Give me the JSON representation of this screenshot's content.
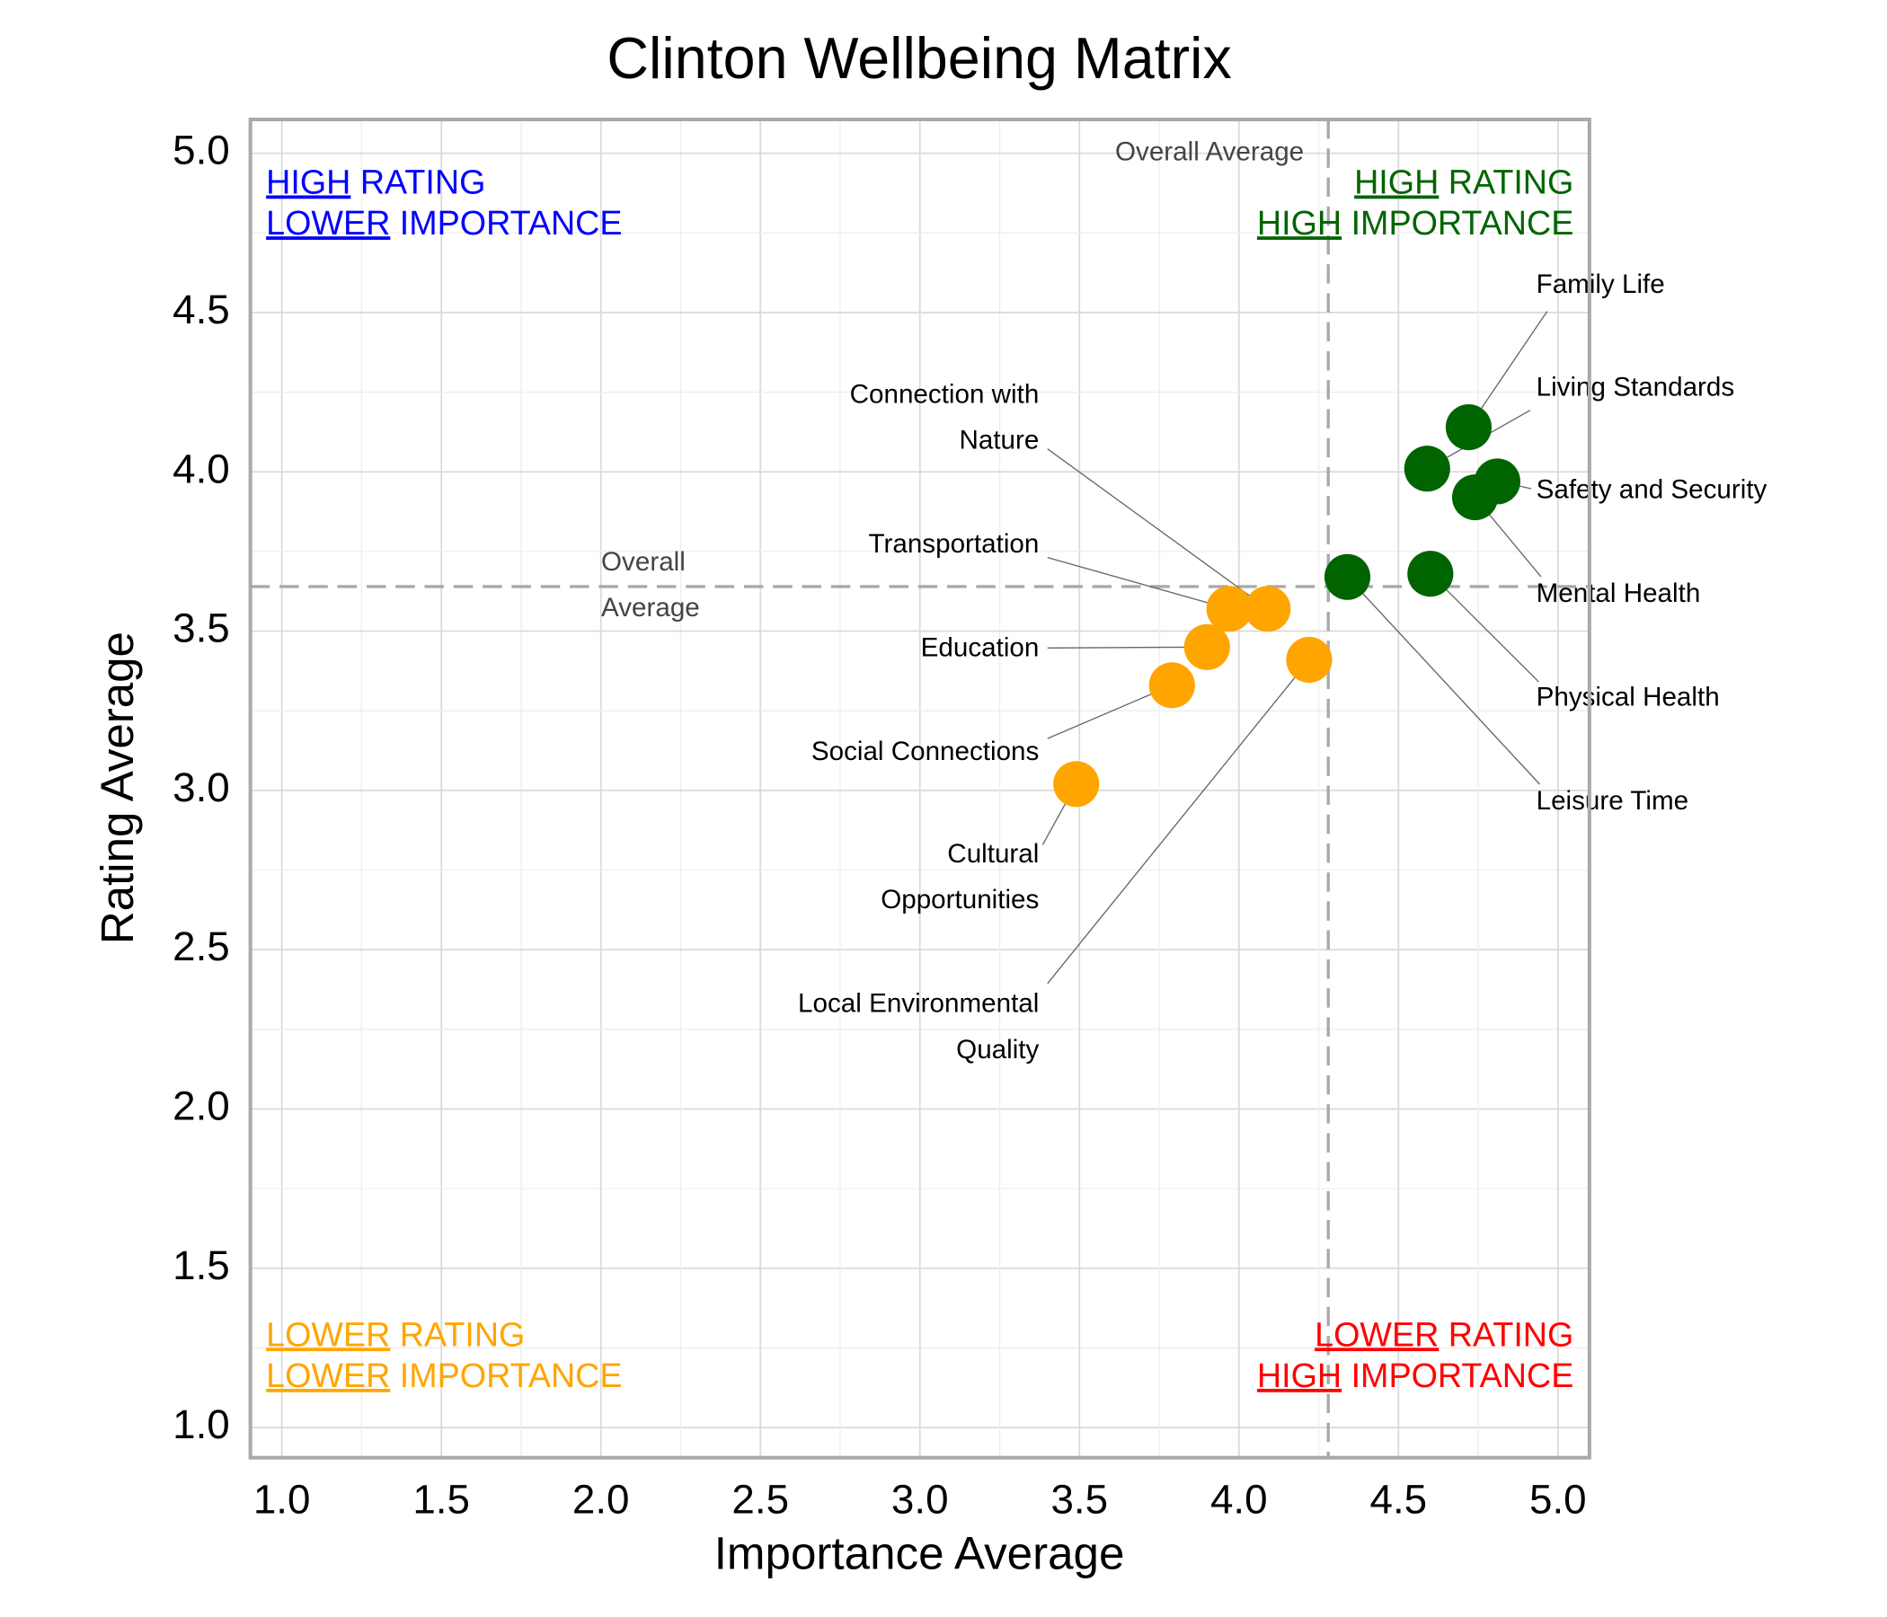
{
  "chart_data": {
    "type": "scatter",
    "title": "Clinton Wellbeing Matrix",
    "xlabel": "Importance Average",
    "ylabel": "Rating Average",
    "xlim": [
      0.9,
      5.1
    ],
    "ylim": [
      0.9,
      5.1
    ],
    "x_ticks": [
      "1.0",
      "1.5",
      "2.0",
      "2.5",
      "3.0",
      "3.5",
      "4.0",
      "4.5",
      "5.0"
    ],
    "y_ticks": [
      "1.0",
      "1.5",
      "2.0",
      "2.5",
      "3.0",
      "3.5",
      "4.0",
      "4.5",
      "5.0"
    ],
    "grid": true,
    "averages": {
      "importance": 4.28,
      "rating": 3.64,
      "vertical_label": "Overall Average",
      "horizontal_label": [
        "Overall",
        "Average"
      ]
    },
    "colors": {
      "high": "#006400",
      "low": "#FFA500",
      "blue": "#0000FF",
      "red": "#FF0000",
      "avg_line": "#A9A9A9"
    },
    "quadrants": {
      "top_left": {
        "line1_u": "HIGH",
        "line1": " RATING",
        "line2_u": "LOWER",
        "line2": " IMPORTANCE",
        "color": "#0000FF"
      },
      "top_right": {
        "line1_u": "HIGH",
        "line1": " RATING",
        "line2_u": "HIGH",
        "line2": " IMPORTANCE",
        "color": "#006400"
      },
      "bottom_left": {
        "line1_u": "LOWER",
        "line1": " RATING",
        "line2_u": "LOWER",
        "line2": " IMPORTANCE",
        "color": "#FFA500"
      },
      "bottom_right": {
        "line1_u": "LOWER",
        "line1": " RATING",
        "line2_u": "HIGH",
        "line2": " IMPORTANCE",
        "color": "#FF0000"
      }
    },
    "points": [
      {
        "label": [
          "Family Life"
        ],
        "x": 4.72,
        "y": 4.14,
        "group": "high"
      },
      {
        "label": [
          "Living Standards"
        ],
        "x": 4.59,
        "y": 4.01,
        "group": "high"
      },
      {
        "label": [
          "Safety and Security"
        ],
        "x": 4.81,
        "y": 3.97,
        "group": "high"
      },
      {
        "label": [
          "Mental Health"
        ],
        "x": 4.74,
        "y": 3.92,
        "group": "high"
      },
      {
        "label": [
          "Physical Health"
        ],
        "x": 4.6,
        "y": 3.68,
        "group": "high"
      },
      {
        "label": [
          "Leisure Time"
        ],
        "x": 4.34,
        "y": 3.67,
        "group": "high"
      },
      {
        "label": [
          "Connection with",
          "Nature"
        ],
        "x": 4.09,
        "y": 3.57,
        "group": "low"
      },
      {
        "label": [
          "Transportation"
        ],
        "x": 3.97,
        "y": 3.57,
        "group": "low"
      },
      {
        "label": [
          "Education"
        ],
        "x": 3.9,
        "y": 3.45,
        "group": "low"
      },
      {
        "label": [
          "Social Connections"
        ],
        "x": 3.79,
        "y": 3.33,
        "group": "low"
      },
      {
        "label": [
          "Cultural",
          "Opportunities"
        ],
        "x": 3.49,
        "y": 3.02,
        "group": "low"
      },
      {
        "label": [
          "Local Environmental",
          "Quality"
        ],
        "x": 4.22,
        "y": 3.41,
        "group": "low"
      }
    ]
  }
}
